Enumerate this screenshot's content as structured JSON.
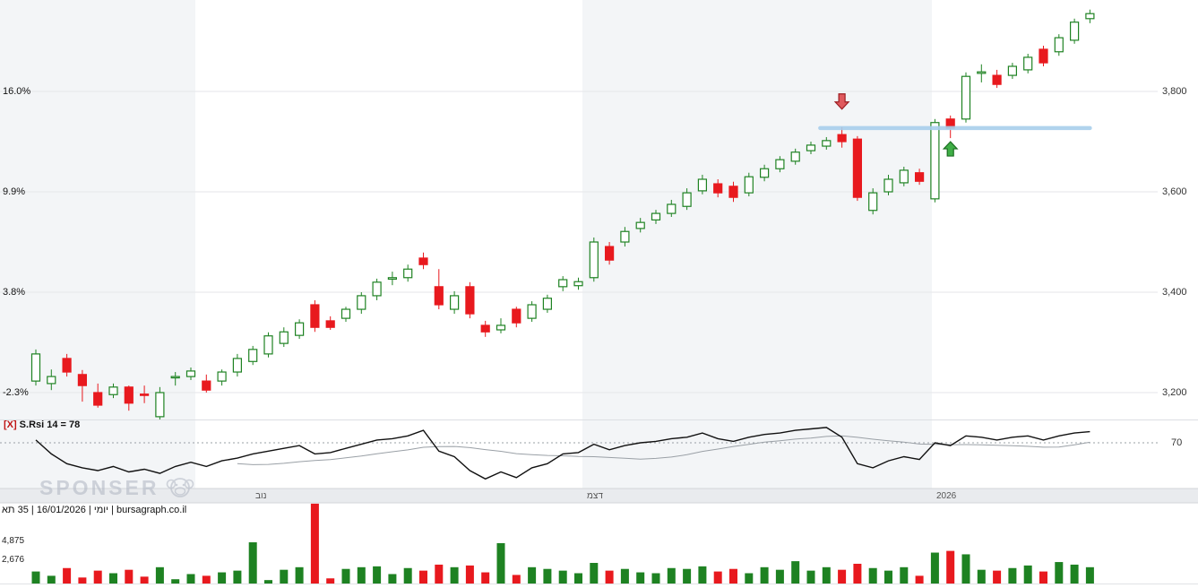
{
  "watermark": {
    "text": "SPONSER"
  },
  "info_bar": {
    "text": "יומי | 16/01/2026 | 35 תא | bursagraph.co.il"
  },
  "indicator_header": {
    "remove": "[X]",
    "label": "S.Rsi 14 = 78"
  },
  "colors": {
    "up": "#1e8222",
    "down": "#e8191e",
    "band": "#f3f5f7",
    "grid": "#e4e6ea",
    "resistance": "#a8cfec",
    "rsi_line": "#111111",
    "rsi_signal": "#9aa0a6",
    "strip_bg": "#e9ebee",
    "arrow_down_fill": "#e05a5e",
    "arrow_down_stroke": "#9c1d22",
    "arrow_up_fill": "#3fae46",
    "arrow_up_stroke": "#1c6e21"
  },
  "chart_data": [
    {
      "type": "candlestick",
      "name": "price",
      "ylim": [
        3140,
        3990
      ],
      "y_ticks": [
        {
          "price": 3200,
          "label": "3,200",
          "pct": "-2.3%"
        },
        {
          "price": 3400,
          "label": "3,400",
          "pct": "3.8%"
        },
        {
          "price": 3600,
          "label": "3,600",
          "pct": "9.9%"
        },
        {
          "price": 3800,
          "label": "3,800",
          "pct": "16.0%"
        }
      ],
      "x_labels": [
        {
          "text": "נוב",
          "x": 285
        },
        {
          "text": "דצמ",
          "x": 655
        },
        {
          "text": "2026",
          "x": 1045
        }
      ],
      "candles": [
        [
          3223,
          3286,
          3214,
          3277
        ],
        [
          3218,
          3246,
          3205,
          3232
        ],
        [
          3268,
          3277,
          3232,
          3241
        ],
        [
          3236,
          3245,
          3182,
          3214
        ],
        [
          3200,
          3218,
          3170,
          3175
        ],
        [
          3196,
          3218,
          3189,
          3211
        ],
        [
          3211,
          3214,
          3164,
          3179
        ],
        [
          3197,
          3214,
          3179,
          3196
        ],
        [
          3152,
          3211,
          3146,
          3200
        ],
        [
          3230,
          3241,
          3214,
          3232
        ],
        [
          3232,
          3250,
          3225,
          3243
        ],
        [
          3223,
          3236,
          3200,
          3205
        ],
        [
          3223,
          3246,
          3214,
          3241
        ],
        [
          3241,
          3277,
          3232,
          3268
        ],
        [
          3262,
          3293,
          3255,
          3286
        ],
        [
          3277,
          3320,
          3270,
          3313
        ],
        [
          3298,
          3330,
          3291,
          3321
        ],
        [
          3314,
          3346,
          3307,
          3339
        ],
        [
          3375,
          3384,
          3321,
          3330
        ],
        [
          3343,
          3352,
          3325,
          3330
        ],
        [
          3348,
          3371,
          3341,
          3366
        ],
        [
          3366,
          3400,
          3357,
          3393
        ],
        [
          3393,
          3427,
          3384,
          3420
        ],
        [
          3426,
          3441,
          3414,
          3429
        ],
        [
          3429,
          3455,
          3421,
          3446
        ],
        [
          3468,
          3479,
          3446,
          3455
        ],
        [
          3411,
          3446,
          3366,
          3375
        ],
        [
          3366,
          3402,
          3357,
          3393
        ],
        [
          3411,
          3420,
          3348,
          3357
        ],
        [
          3334,
          3343,
          3311,
          3321
        ],
        [
          3325,
          3348,
          3318,
          3334
        ],
        [
          3366,
          3371,
          3330,
          3339
        ],
        [
          3348,
          3382,
          3341,
          3375
        ],
        [
          3366,
          3395,
          3359,
          3388
        ],
        [
          3411,
          3432,
          3402,
          3425
        ],
        [
          3413,
          3429,
          3405,
          3421
        ],
        [
          3429,
          3509,
          3421,
          3500
        ],
        [
          3491,
          3500,
          3455,
          3464
        ],
        [
          3500,
          3530,
          3491,
          3521
        ],
        [
          3527,
          3548,
          3519,
          3539
        ],
        [
          3544,
          3564,
          3536,
          3557
        ],
        [
          3557,
          3584,
          3550,
          3575
        ],
        [
          3571,
          3607,
          3564,
          3598
        ],
        [
          3602,
          3634,
          3595,
          3625
        ],
        [
          3616,
          3625,
          3589,
          3598
        ],
        [
          3611,
          3620,
          3580,
          3589
        ],
        [
          3598,
          3638,
          3591,
          3630
        ],
        [
          3629,
          3654,
          3621,
          3646
        ],
        [
          3646,
          3671,
          3639,
          3664
        ],
        [
          3661,
          3686,
          3654,
          3679
        ],
        [
          3682,
          3700,
          3675,
          3693
        ],
        [
          3691,
          3709,
          3684,
          3702
        ],
        [
          3714,
          3729,
          3688,
          3700
        ],
        [
          3705,
          3711,
          3582,
          3589
        ],
        [
          3563,
          3607,
          3555,
          3598
        ],
        [
          3600,
          3634,
          3593,
          3625
        ],
        [
          3618,
          3650,
          3611,
          3643
        ],
        [
          3638,
          3646,
          3614,
          3621
        ],
        [
          3586,
          3745,
          3579,
          3738
        ],
        [
          3745,
          3752,
          3707,
          3727
        ],
        [
          3745,
          3838,
          3738,
          3830
        ],
        [
          3836,
          3854,
          3818,
          3839
        ],
        [
          3832,
          3843,
          3807,
          3814
        ],
        [
          3832,
          3857,
          3825,
          3850
        ],
        [
          3843,
          3875,
          3836,
          3868
        ],
        [
          3884,
          3891,
          3850,
          3857
        ],
        [
          3879,
          3914,
          3871,
          3907
        ],
        [
          3902,
          3945,
          3895,
          3938
        ],
        [
          3945,
          3963,
          3936,
          3955
        ]
      ],
      "overlays": {
        "resistance": {
          "price": 3727,
          "start_index": 50.6,
          "end_index": 68,
          "color": "#a8cfec"
        },
        "arrows": [
          {
            "dir": "down",
            "index": 52
          },
          {
            "dir": "up",
            "index": 59
          }
        ]
      }
    },
    {
      "type": "line",
      "name": "S.Rsi 14",
      "current": 78,
      "reference_level": 70,
      "signal_window": 14,
      "values": [
        72,
        62,
        55,
        52,
        50,
        53,
        49,
        51,
        48,
        53,
        56,
        53,
        57,
        59,
        62,
        64,
        66,
        68,
        62,
        63,
        66,
        69,
        72,
        73,
        75,
        79,
        64,
        60,
        50,
        44,
        49,
        45,
        52,
        55,
        62,
        63,
        69,
        65,
        68,
        70,
        71,
        73,
        74,
        77,
        73,
        71,
        74,
        76,
        77,
        79,
        80,
        81,
        74,
        55,
        52,
        57,
        60,
        58,
        70,
        68,
        75,
        74,
        72,
        74,
        75,
        72,
        75,
        77,
        78
      ]
    },
    {
      "type": "bar",
      "name": "volume",
      "ymax": 9500,
      "y_ticks": [
        {
          "value": 4875,
          "label": "4,875"
        },
        {
          "value": 2676,
          "label": "2,676"
        }
      ],
      "values": [
        1400,
        900,
        1800,
        700,
        1500,
        1200,
        1600,
        800,
        1900,
        500,
        1100,
        900,
        1300,
        1500,
        4800,
        400,
        1600,
        1900,
        9300,
        600,
        1700,
        1900,
        2000,
        1100,
        1800,
        1500,
        2200,
        1900,
        2100,
        1300,
        4700,
        1000,
        1900,
        1700,
        1500,
        1200,
        2400,
        1500,
        1700,
        1300,
        1200,
        1800,
        1700,
        2000,
        1400,
        1700,
        1200,
        1900,
        1600,
        2600,
        1500,
        1900,
        1600,
        2300,
        1800,
        1500,
        1900,
        900,
        3600,
        3800,
        3400,
        1600,
        1500,
        1800,
        2100,
        1400,
        2500,
        2200,
        1900
      ]
    }
  ]
}
